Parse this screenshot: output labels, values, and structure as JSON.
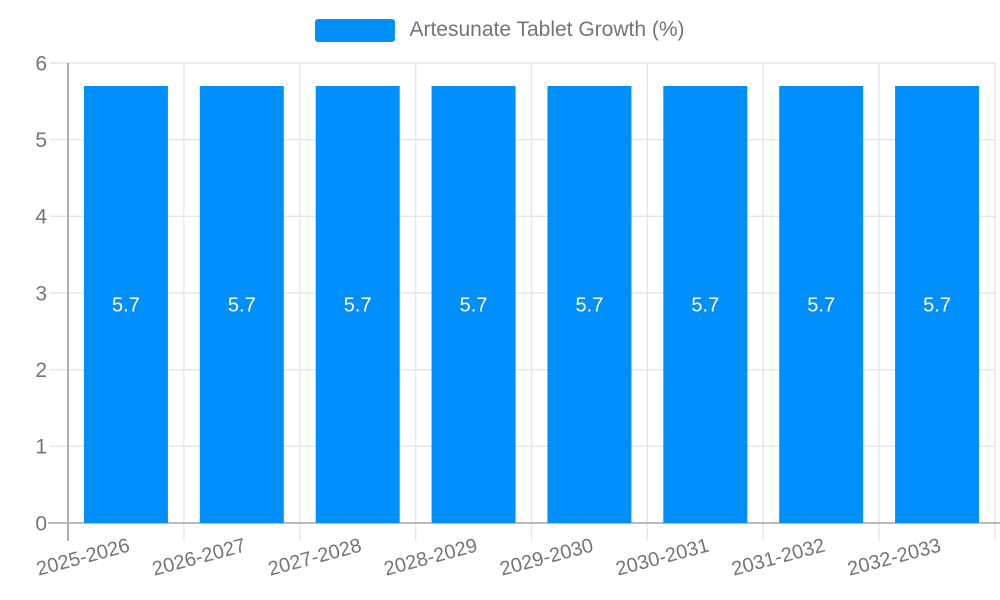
{
  "colors": {
    "bar": "#008FFB",
    "axis_label": "#757575",
    "grid_line": "#e7e7e7",
    "axis_line": "#b3b3b3",
    "y_axis_line": "#a8a8a8",
    "value_label": "#ffffff",
    "background": "#ffffff"
  },
  "legend": {
    "label": "Artesunate Tablet Growth (%)"
  },
  "chart_data": {
    "type": "bar",
    "title": "Artesunate Tablet Growth (%)",
    "categories": [
      "2025-2026",
      "2026-2027",
      "2027-2028",
      "2028-2029",
      "2029-2030",
      "2030-2031",
      "2031-2032",
      "2032-2033"
    ],
    "series": [
      {
        "name": "Artesunate Tablet Growth (%)",
        "values": [
          5.7,
          5.7,
          5.7,
          5.7,
          5.7,
          5.7,
          5.7,
          5.7
        ]
      }
    ],
    "data_labels": [
      "5.7",
      "5.7",
      "5.7",
      "5.7",
      "5.7",
      "5.7",
      "5.7",
      "5.7"
    ],
    "xlabel": "",
    "ylabel": "",
    "ylim": [
      0,
      6
    ],
    "yticks": [
      0,
      1,
      2,
      3,
      4,
      5,
      6
    ],
    "grid": true,
    "legend_position": "top",
    "x_label_rotation_deg": -15
  }
}
